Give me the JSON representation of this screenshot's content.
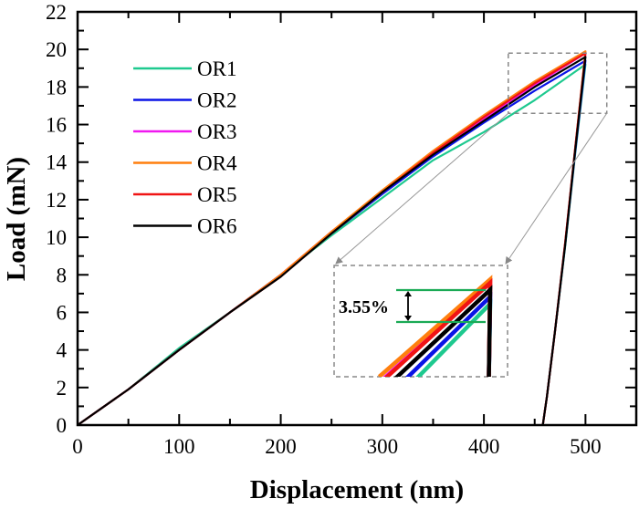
{
  "chart_data": {
    "type": "line",
    "title": "",
    "xlabel": "Displacement (nm)",
    "ylabel": "Load (mN)",
    "xlim": [
      0,
      550
    ],
    "ylim": [
      0,
      22
    ],
    "xticks": [
      0,
      100,
      200,
      300,
      400,
      500
    ],
    "yticks": [
      0,
      2,
      4,
      6,
      8,
      10,
      12,
      14,
      16,
      18,
      20,
      22
    ],
    "xminor_step": 50,
    "yminor_step": 1,
    "grid": false,
    "legend_position": "top-left",
    "series": [
      {
        "name": "OR1",
        "color": "#1ec98f",
        "loading": [
          [
            0,
            0
          ],
          [
            50,
            1.9
          ],
          [
            100,
            4.1
          ],
          [
            150,
            6.0
          ],
          [
            200,
            8.0
          ],
          [
            250,
            10.1
          ],
          [
            300,
            12.1
          ],
          [
            350,
            14.1
          ],
          [
            400,
            15.6
          ],
          [
            450,
            17.3
          ],
          [
            500,
            19.2
          ]
        ],
        "unloading": [
          [
            500,
            19.2
          ],
          [
            490,
            14.5
          ],
          [
            480,
            9.5
          ],
          [
            470,
            5.0
          ],
          [
            462,
            1.5
          ],
          [
            458,
            0
          ]
        ]
      },
      {
        "name": "OR2",
        "color": "#0a14e6",
        "loading": [
          [
            0,
            0
          ],
          [
            50,
            1.9
          ],
          [
            100,
            4.0
          ],
          [
            150,
            6.0
          ],
          [
            200,
            8.0
          ],
          [
            250,
            10.2
          ],
          [
            300,
            12.3
          ],
          [
            350,
            14.3
          ],
          [
            400,
            16.1
          ],
          [
            450,
            17.8
          ],
          [
            500,
            19.4
          ]
        ],
        "unloading": [
          [
            500,
            19.4
          ],
          [
            490,
            14.6
          ],
          [
            480,
            9.6
          ],
          [
            470,
            5.0
          ],
          [
            462,
            1.5
          ],
          [
            458,
            0
          ]
        ]
      },
      {
        "name": "OR3",
        "color": "#f019f0",
        "loading": [
          [
            0,
            0
          ],
          [
            50,
            1.9
          ],
          [
            100,
            4.0
          ],
          [
            150,
            6.0
          ],
          [
            200,
            8.0
          ],
          [
            250,
            10.3
          ],
          [
            300,
            12.4
          ],
          [
            350,
            14.5
          ],
          [
            400,
            16.3
          ],
          [
            450,
            18.1
          ],
          [
            500,
            19.8
          ]
        ],
        "unloading": [
          [
            500,
            19.8
          ],
          [
            490,
            14.8
          ],
          [
            480,
            9.7
          ],
          [
            470,
            5.0
          ],
          [
            462,
            1.5
          ],
          [
            458,
            0
          ]
        ]
      },
      {
        "name": "OR4",
        "color": "#ff7f0e",
        "loading": [
          [
            0,
            0
          ],
          [
            50,
            1.9
          ],
          [
            100,
            4.0
          ],
          [
            150,
            6.0
          ],
          [
            200,
            8.0
          ],
          [
            250,
            10.3
          ],
          [
            300,
            12.5
          ],
          [
            350,
            14.6
          ],
          [
            400,
            16.5
          ],
          [
            450,
            18.3
          ],
          [
            500,
            19.9
          ]
        ],
        "unloading": [
          [
            500,
            19.9
          ],
          [
            490,
            14.8
          ],
          [
            480,
            9.7
          ],
          [
            470,
            5.0
          ],
          [
            462,
            1.5
          ],
          [
            458,
            0
          ]
        ]
      },
      {
        "name": "OR5",
        "color": "#f01414",
        "loading": [
          [
            0,
            0
          ],
          [
            50,
            1.9
          ],
          [
            100,
            4.0
          ],
          [
            150,
            6.0
          ],
          [
            200,
            7.9
          ],
          [
            250,
            10.2
          ],
          [
            300,
            12.4
          ],
          [
            350,
            14.5
          ],
          [
            400,
            16.4
          ],
          [
            450,
            18.2
          ],
          [
            500,
            19.8
          ]
        ],
        "unloading": [
          [
            500,
            19.8
          ],
          [
            490,
            14.8
          ],
          [
            480,
            9.7
          ],
          [
            470,
            5.0
          ],
          [
            462,
            1.5
          ],
          [
            458,
            0
          ]
        ]
      },
      {
        "name": "OR6",
        "color": "#000000",
        "loading": [
          [
            0,
            0
          ],
          [
            50,
            1.9
          ],
          [
            100,
            4.0
          ],
          [
            150,
            6.0
          ],
          [
            200,
            7.9
          ],
          [
            250,
            10.2
          ],
          [
            300,
            12.4
          ],
          [
            350,
            14.4
          ],
          [
            400,
            16.2
          ],
          [
            450,
            18.0
          ],
          [
            500,
            19.6
          ]
        ],
        "unloading": [
          [
            500,
            19.6
          ],
          [
            490,
            14.7
          ],
          [
            480,
            9.6
          ],
          [
            470,
            5.0
          ],
          [
            462,
            1.5
          ],
          [
            458,
            0
          ]
        ]
      }
    ],
    "inset": {
      "zoom_region_x": [
        424,
        521
      ],
      "zoom_region_y": [
        16.6,
        19.8
      ],
      "annotation": "3.55%",
      "marker_color": "#1aaa55"
    }
  }
}
